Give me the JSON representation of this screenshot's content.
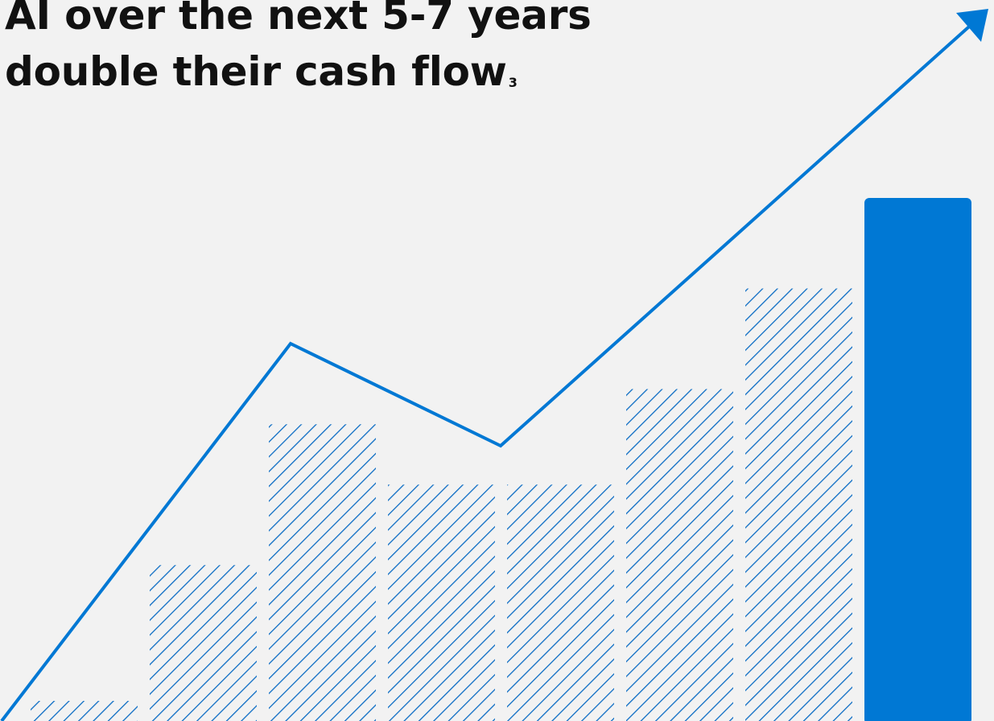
{
  "headline": {
    "line1": "AI over the next 5-7 years",
    "line2": "double their cash flow",
    "footnote": "3"
  },
  "chart_data": {
    "type": "bar",
    "title": "",
    "xlabel": "",
    "ylabel": "",
    "categories": [
      "",
      "",
      "",
      "",
      "",
      "",
      "",
      ""
    ],
    "values": [
      4,
      31,
      59,
      47,
      47,
      66,
      86,
      104
    ],
    "highlight_index": 7,
    "ylim": [
      0,
      120
    ],
    "grid": false,
    "trend_line": {
      "points": [
        0,
        70,
        0,
        0,
        50,
        0,
        0,
        125
      ],
      "arrow": true
    },
    "colors": {
      "accent": "#0078d4",
      "hatch": "#0b6cc4",
      "background": "#f2f2f2"
    }
  }
}
